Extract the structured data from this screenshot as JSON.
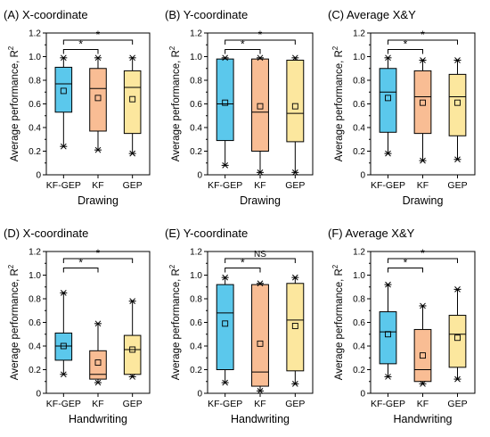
{
  "colors": {
    "KF-GEP": "#5bc8ec",
    "KF": "#f9bd94",
    "GEP": "#fce79e"
  },
  "chart_data": [
    {
      "type": "box",
      "label": "(A)",
      "title": "X-coordinate",
      "xlabel": "Drawing",
      "ylabel": "Average performance, R",
      "ylabel_sup": "2",
      "ylim": [
        0,
        1.2
      ],
      "yticks": [
        "0",
        "0.2",
        "0.4",
        "0.6",
        "0.8",
        "1.0",
        "1.2"
      ],
      "categories": [
        "KF-GEP",
        "KF",
        "GEP"
      ],
      "boxes": [
        {
          "min": 0.24,
          "q1": 0.53,
          "median": 0.77,
          "q3": 0.91,
          "max": 0.99,
          "mean": 0.71
        },
        {
          "min": 0.21,
          "q1": 0.37,
          "median": 0.73,
          "q3": 0.9,
          "max": 0.99,
          "mean": 0.65
        },
        {
          "min": 0.18,
          "q1": 0.35,
          "median": 0.74,
          "q3": 0.88,
          "max": 0.99,
          "mean": 0.64
        }
      ],
      "brackets": [
        {
          "from": 0,
          "to": 1,
          "label": "*"
        },
        {
          "from": 0,
          "to": 2,
          "label": "*"
        }
      ]
    },
    {
      "type": "box",
      "label": "(B)",
      "title": "Y-coordinate",
      "xlabel": "Drawing",
      "ylabel": "Average performance, R",
      "ylabel_sup": "2",
      "ylim": [
        0,
        1.2
      ],
      "yticks": [
        "0",
        "0.2",
        "0.4",
        "0.6",
        "0.8",
        "1.0",
        "1.2"
      ],
      "categories": [
        "KF-GEP",
        "KF",
        "GEP"
      ],
      "boxes": [
        {
          "min": 0.08,
          "q1": 0.29,
          "median": 0.6,
          "q3": 0.98,
          "max": 0.99,
          "mean": 0.61
        },
        {
          "min": 0.02,
          "q1": 0.2,
          "median": 0.53,
          "q3": 0.98,
          "max": 0.99,
          "mean": 0.58
        },
        {
          "min": 0.02,
          "q1": 0.28,
          "median": 0.52,
          "q3": 0.97,
          "max": 0.99,
          "mean": 0.58
        }
      ],
      "brackets": [
        {
          "from": 0,
          "to": 1,
          "label": "*"
        },
        {
          "from": 0,
          "to": 2,
          "label": "*"
        }
      ]
    },
    {
      "type": "box",
      "label": "(C)",
      "title": "Average X&Y",
      "xlabel": "Drawing",
      "ylabel": "Average performance, R",
      "ylabel_sup": "2",
      "ylim": [
        0,
        1.2
      ],
      "yticks": [
        "0",
        "0.2",
        "0.4",
        "0.6",
        "0.8",
        "1.0",
        "1.2"
      ],
      "categories": [
        "KF-GEP",
        "KF",
        "GEP"
      ],
      "boxes": [
        {
          "min": 0.18,
          "q1": 0.36,
          "median": 0.7,
          "q3": 0.9,
          "max": 0.99,
          "mean": 0.65
        },
        {
          "min": 0.12,
          "q1": 0.35,
          "median": 0.66,
          "q3": 0.88,
          "max": 0.97,
          "mean": 0.61
        },
        {
          "min": 0.13,
          "q1": 0.33,
          "median": 0.66,
          "q3": 0.85,
          "max": 0.97,
          "mean": 0.61
        }
      ],
      "brackets": [
        {
          "from": 0,
          "to": 1,
          "label": "*"
        },
        {
          "from": 0,
          "to": 2,
          "label": "*"
        }
      ]
    },
    {
      "type": "box",
      "label": "(D)",
      "title": "X-coordinate",
      "xlabel": "Handwriting",
      "ylabel": "Average performance, R",
      "ylabel_sup": "2",
      "ylim": [
        0,
        1.2
      ],
      "yticks": [
        "0",
        "0.2",
        "0.4",
        "0.6",
        "0.8",
        "1.0",
        "1.2"
      ],
      "categories": [
        "KF-GEP",
        "KF",
        "GEP"
      ],
      "boxes": [
        {
          "min": 0.16,
          "q1": 0.28,
          "median": 0.4,
          "q3": 0.51,
          "max": 0.85,
          "mean": 0.4
        },
        {
          "min": 0.09,
          "q1": 0.12,
          "median": 0.16,
          "q3": 0.36,
          "max": 0.59,
          "mean": 0.26
        },
        {
          "min": 0.14,
          "q1": 0.16,
          "median": 0.37,
          "q3": 0.49,
          "max": 0.78,
          "mean": 0.37
        }
      ],
      "brackets": [
        {
          "from": 0,
          "to": 1,
          "label": "*"
        },
        {
          "from": 0,
          "to": 2,
          "label": "*"
        }
      ]
    },
    {
      "type": "box",
      "label": "(E)",
      "title": "Y-coordinate",
      "xlabel": "Handwriting",
      "ylabel": "Average performance, R",
      "ylabel_sup": "2",
      "ylim": [
        0,
        1.2
      ],
      "yticks": [
        "0",
        "0.2",
        "0.4",
        "0.6",
        "0.8",
        "1.0",
        "1.2"
      ],
      "categories": [
        "KF-GEP",
        "KF",
        "GEP"
      ],
      "boxes": [
        {
          "min": 0.09,
          "q1": 0.2,
          "median": 0.68,
          "q3": 0.92,
          "max": 0.98,
          "mean": 0.59
        },
        {
          "min": 0.02,
          "q1": 0.06,
          "median": 0.18,
          "q3": 0.92,
          "max": 0.93,
          "mean": 0.42
        },
        {
          "min": 0.08,
          "q1": 0.19,
          "median": 0.62,
          "q3": 0.93,
          "max": 0.98,
          "mean": 0.57
        }
      ],
      "brackets": [
        {
          "from": 0,
          "to": 1,
          "label": "*"
        },
        {
          "from": 0,
          "to": 2,
          "label": "NS"
        }
      ]
    },
    {
      "type": "box",
      "label": "(F)",
      "title": "Average X&Y",
      "xlabel": "Handwriting",
      "ylabel": "Average performance, R",
      "ylabel_sup": "2",
      "ylim": [
        0,
        1.2
      ],
      "yticks": [
        "0",
        "0.2",
        "0.4",
        "0.6",
        "0.8",
        "1.0",
        "1.2"
      ],
      "categories": [
        "KF-GEP",
        "KF",
        "GEP"
      ],
      "boxes": [
        {
          "min": 0.14,
          "q1": 0.25,
          "median": 0.52,
          "q3": 0.69,
          "max": 0.92,
          "mean": 0.5
        },
        {
          "min": 0.08,
          "q1": 0.1,
          "median": 0.2,
          "q3": 0.54,
          "max": 0.74,
          "mean": 0.32
        },
        {
          "min": 0.12,
          "q1": 0.22,
          "median": 0.5,
          "q3": 0.66,
          "max": 0.88,
          "mean": 0.47
        }
      ],
      "brackets": [
        {
          "from": 0,
          "to": 1,
          "label": "*"
        },
        {
          "from": 0,
          "to": 2,
          "label": "*"
        }
      ]
    }
  ]
}
